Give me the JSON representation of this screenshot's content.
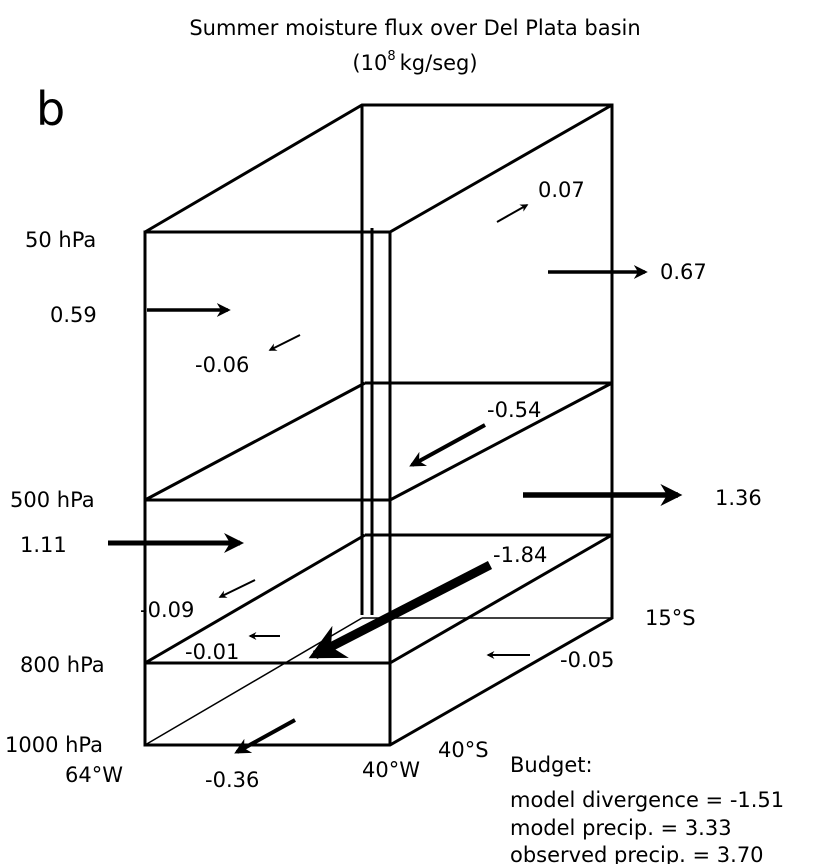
{
  "header": {
    "title": "Summer moisture flux over Del Plata basin",
    "units_prefix": "(10",
    "units_exponent": "8",
    "units_suffix": "kg/seg)",
    "panel": "b"
  },
  "levels": [
    "50 hPa",
    "500 hPa",
    "800 hPa",
    "1000 hPa"
  ],
  "longitudes": [
    "64°W",
    "40°W"
  ],
  "latitudes": [
    "40°S",
    "15°S"
  ],
  "fluxes": [
    "0.07",
    "0.67",
    "0.59",
    "-0.06",
    "-0.54",
    "1.36",
    "1.11",
    "-1.84",
    "-0.09",
    "-0.01",
    "-0.05",
    "-0.36"
  ],
  "budget": {
    "title": "Budget:",
    "lines": [
      "model divergence = -1.51",
      "model precip. = 3.33",
      "observed precip. = 3.70"
    ]
  }
}
